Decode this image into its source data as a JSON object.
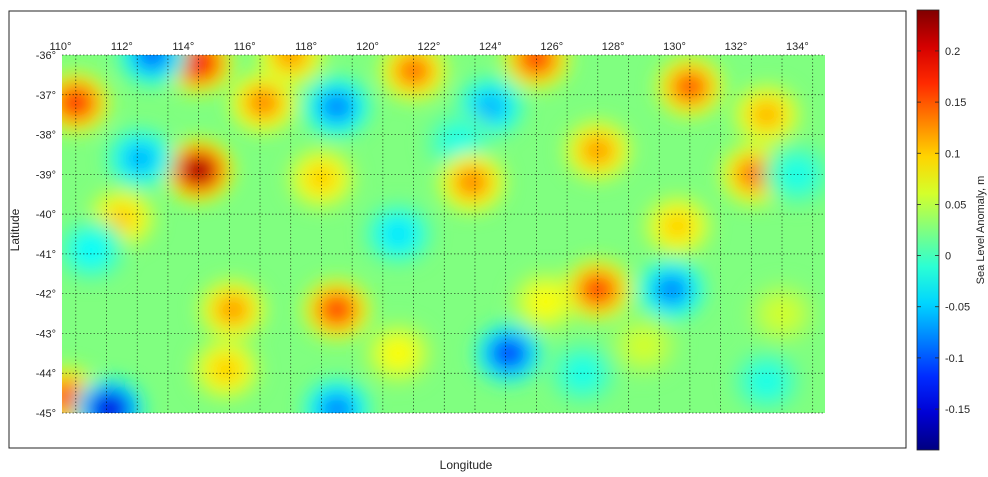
{
  "chart_data": {
    "type": "heatmap",
    "title": "",
    "xlabel": "Longitude",
    "ylabel": "Latitude",
    "xlim": [
      110,
      135
    ],
    "ylim": [
      -45,
      -36
    ],
    "x_ticks": [
      {
        "value": 110,
        "label": "110°"
      },
      {
        "value": 112,
        "label": "112°"
      },
      {
        "value": 114,
        "label": "114°"
      },
      {
        "value": 116,
        "label": "116°"
      },
      {
        "value": 118,
        "label": "118°"
      },
      {
        "value": 120,
        "label": "120°"
      },
      {
        "value": 122,
        "label": "122°"
      },
      {
        "value": 124,
        "label": "124°"
      },
      {
        "value": 126,
        "label": "126°"
      },
      {
        "value": 128,
        "label": "128°"
      },
      {
        "value": 130,
        "label": "130°"
      },
      {
        "value": 132,
        "label": "132°"
      },
      {
        "value": 134,
        "label": "134°"
      }
    ],
    "y_ticks": [
      {
        "value": -36,
        "label": "-36°"
      },
      {
        "value": -37,
        "label": "-37°"
      },
      {
        "value": -38,
        "label": "-38°"
      },
      {
        "value": -39,
        "label": "-39°"
      },
      {
        "value": -40,
        "label": "-40°"
      },
      {
        "value": -41,
        "label": "-41°"
      },
      {
        "value": -42,
        "label": "-42°"
      },
      {
        "value": -43,
        "label": "-43°"
      },
      {
        "value": -44,
        "label": "-44°"
      },
      {
        "value": -45,
        "label": "-45°"
      }
    ],
    "grid": true,
    "colorbar": {
      "label": "Sea Level Anomaly, m",
      "range": [
        -0.19,
        0.24
      ],
      "colormap": "jet",
      "ticks": [
        {
          "value": 0.2,
          "label": "0.2"
        },
        {
          "value": 0.15,
          "label": "0.15"
        },
        {
          "value": 0.1,
          "label": "0.1"
        },
        {
          "value": 0.05,
          "label": "0.05"
        },
        {
          "value": 0,
          "label": "0"
        },
        {
          "value": -0.05,
          "label": "-0.05"
        },
        {
          "value": -0.1,
          "label": "-0.1"
        },
        {
          "value": -0.15,
          "label": "-0.15"
        }
      ]
    },
    "background_value": 0.025,
    "features": [
      {
        "lon": 114.5,
        "lat": -38.9,
        "value": 0.23
      },
      {
        "lon": 114.5,
        "lat": -36.2,
        "value": 0.19
      },
      {
        "lon": 113.0,
        "lat": -36.0,
        "value": -0.09
      },
      {
        "lon": 110.5,
        "lat": -37.2,
        "value": 0.17
      },
      {
        "lon": 110.2,
        "lat": -44.6,
        "value": 0.15
      },
      {
        "lon": 111.6,
        "lat": -44.9,
        "value": -0.15
      },
      {
        "lon": 112.6,
        "lat": -38.6,
        "value": -0.06
      },
      {
        "lon": 112.0,
        "lat": -40.1,
        "value": 0.1
      },
      {
        "lon": 111.0,
        "lat": -40.9,
        "value": -0.03
      },
      {
        "lon": 116.6,
        "lat": -37.2,
        "value": 0.13
      },
      {
        "lon": 117.5,
        "lat": -36.0,
        "value": 0.12
      },
      {
        "lon": 119.0,
        "lat": -37.3,
        "value": -0.08
      },
      {
        "lon": 118.5,
        "lat": -39.1,
        "value": 0.1
      },
      {
        "lon": 119.0,
        "lat": -42.4,
        "value": 0.16
      },
      {
        "lon": 115.6,
        "lat": -42.4,
        "value": 0.12
      },
      {
        "lon": 115.4,
        "lat": -43.9,
        "value": 0.1
      },
      {
        "lon": 119.0,
        "lat": -44.9,
        "value": -0.08
      },
      {
        "lon": 121.5,
        "lat": -36.4,
        "value": 0.14
      },
      {
        "lon": 124.0,
        "lat": -37.3,
        "value": -0.06
      },
      {
        "lon": 123.0,
        "lat": -38.2,
        "value": -0.02
      },
      {
        "lon": 123.4,
        "lat": -39.2,
        "value": 0.13
      },
      {
        "lon": 125.5,
        "lat": -36.1,
        "value": 0.16
      },
      {
        "lon": 124.6,
        "lat": -43.5,
        "value": -0.11
      },
      {
        "lon": 125.8,
        "lat": -42.2,
        "value": 0.08
      },
      {
        "lon": 127.5,
        "lat": -38.4,
        "value": 0.12
      },
      {
        "lon": 127.5,
        "lat": -41.9,
        "value": 0.16
      },
      {
        "lon": 129.9,
        "lat": -41.9,
        "value": -0.08
      },
      {
        "lon": 130.1,
        "lat": -40.3,
        "value": 0.1
      },
      {
        "lon": 130.5,
        "lat": -36.8,
        "value": 0.15
      },
      {
        "lon": 132.6,
        "lat": -39.0,
        "value": 0.14
      },
      {
        "lon": 133.0,
        "lat": -37.5,
        "value": 0.11
      },
      {
        "lon": 134.0,
        "lat": -39.0,
        "value": -0.02
      },
      {
        "lon": 121.0,
        "lat": -40.5,
        "value": -0.04
      },
      {
        "lon": 127.0,
        "lat": -44.0,
        "value": -0.02
      },
      {
        "lon": 121.0,
        "lat": -43.5,
        "value": 0.08
      },
      {
        "lon": 129.0,
        "lat": -43.3,
        "value": 0.06
      },
      {
        "lon": 133.5,
        "lat": -42.5,
        "value": 0.06
      },
      {
        "lon": 133.0,
        "lat": -44.2,
        "value": -0.02
      }
    ]
  }
}
